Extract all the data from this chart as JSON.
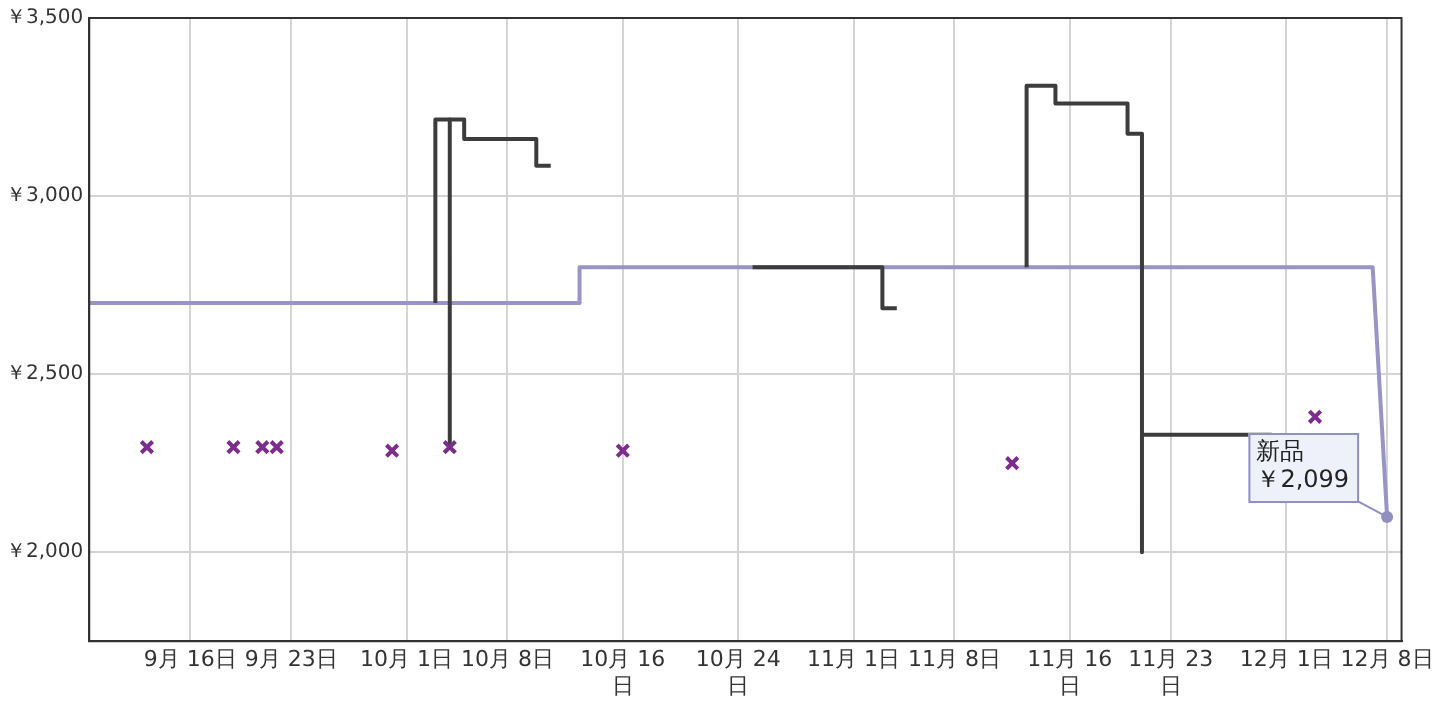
{
  "chart_data": {
    "type": "line",
    "xlim": [
      "--09-09",
      "--12-09"
    ],
    "xticks": [
      {
        "value": "--09-16",
        "label": "9月 16日"
      },
      {
        "value": "--09-23",
        "label": "9月 23日"
      },
      {
        "value": "--10-01",
        "label": "10月 1日"
      },
      {
        "value": "--10-08",
        "label": "10月 8日"
      },
      {
        "value": "--10-16",
        "label": "10月 16日"
      },
      {
        "value": "--10-24",
        "label": "10月 24日"
      },
      {
        "value": "--11-01",
        "label": "11月 1日"
      },
      {
        "value": "--11-08",
        "label": "11月 8日"
      },
      {
        "value": "--11-16",
        "label": "11月 16日"
      },
      {
        "value": "--11-23",
        "label": "11月 23日"
      },
      {
        "value": "--12-01",
        "label": "12月 1日"
      },
      {
        "value": "--12-08",
        "label": "12月 8日"
      }
    ],
    "ylim": [
      1750,
      3500
    ],
    "yticks": [
      {
        "value": 2000,
        "label": "￥2,000"
      },
      {
        "value": 2500,
        "label": "￥2,500"
      },
      {
        "value": 3000,
        "label": "￥3,000"
      },
      {
        "value": 3500,
        "label": "￥3,500"
      }
    ],
    "grid": true,
    "marker": "none",
    "line_style": "solid",
    "series": [
      {
        "color": "#9894c6",
        "x": [
          "--09-09",
          "--10-13",
          "--10-13",
          "--12-07",
          "--12-08"
        ],
        "values": [
          2700,
          2700,
          2800,
          2800,
          2099
        ]
      },
      {
        "color": "#3c3c3c",
        "x": [
          "--10-03",
          "--10-03",
          "--10-05",
          "--10-05",
          "--10-10",
          "--10-10",
          "--10-11",
          "--10-20",
          "--10-25",
          "--11-03",
          "--11-03",
          "--11-04",
          "--11-08",
          "--11-13",
          "--11-13",
          "--11-15",
          "--11-15",
          "--11-20",
          "--11-20",
          "--11-21",
          "--11-21",
          "--11-21",
          "--11-30"
        ],
        "values": [
          2700,
          3215,
          3215,
          3160,
          3160,
          3085,
          3085,
          null,
          2800,
          2800,
          2685,
          2685,
          null,
          2800,
          3310,
          3310,
          3260,
          3260,
          3175,
          3175,
          2000,
          2330,
          2330
        ]
      },
      {
        "color": "#3c3c3c",
        "x": [
          "--10-04",
          "--10-04"
        ],
        "values": [
          3215,
          2300
        ]
      },
      {
        "type": "scatter",
        "color": "#7b2d8b",
        "marker": "cross",
        "x": [
          "--09-13",
          "--09-19",
          "--09-21",
          "--09-22",
          "--09-30",
          "--10-04",
          "--10-16",
          "--11-12",
          "--12-03"
        ],
        "values": [
          2295,
          2295,
          2295,
          2295,
          2285,
          2295,
          2285,
          2250,
          2380
        ]
      }
    ],
    "annotations": [
      "新品",
      {
        "text": "￥2,099",
        "x": "--12-08",
        "y": 2099
      }
    ]
  }
}
